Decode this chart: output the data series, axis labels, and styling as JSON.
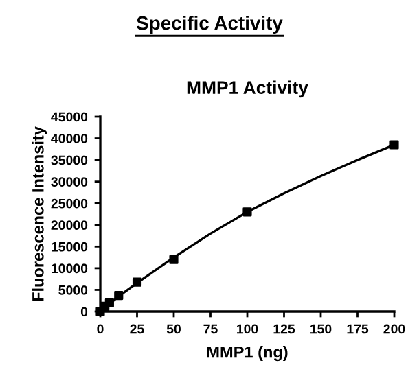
{
  "chart_data": {
    "type": "scatter",
    "title": "Specific Activity",
    "subtitle": "MMP1 Activity",
    "xlabel": "MMP1 (ng)",
    "ylabel": "Fluorescence Intensity",
    "series": [
      {
        "color": "#000000",
        "marker": "square",
        "x": [
          0,
          1.5625,
          3.125,
          6.25,
          12.5,
          25,
          50,
          100,
          200
        ],
        "values": [
          0,
          null,
          1200,
          2000,
          3700,
          6800,
          12000,
          23000,
          38500
        ]
      },
      {
        "type": "line",
        "color": "#000000",
        "marker": "none",
        "x": [
          0,
          12.5,
          25,
          50,
          75,
          100,
          125,
          150,
          175,
          200
        ],
        "values": [
          0,
          3500,
          6600,
          12500,
          18000,
          23000,
          27300,
          31300,
          35000,
          38500
        ]
      }
    ],
    "xlim": [
      0,
      200
    ],
    "xticks": [
      0,
      25,
      50,
      75,
      100,
      125,
      150,
      175,
      200
    ],
    "ylim": [
      0,
      45000
    ],
    "yticks": [
      0,
      5000,
      10000,
      15000,
      20000,
      25000,
      30000,
      35000,
      40000,
      45000
    ],
    "grid": false
  }
}
